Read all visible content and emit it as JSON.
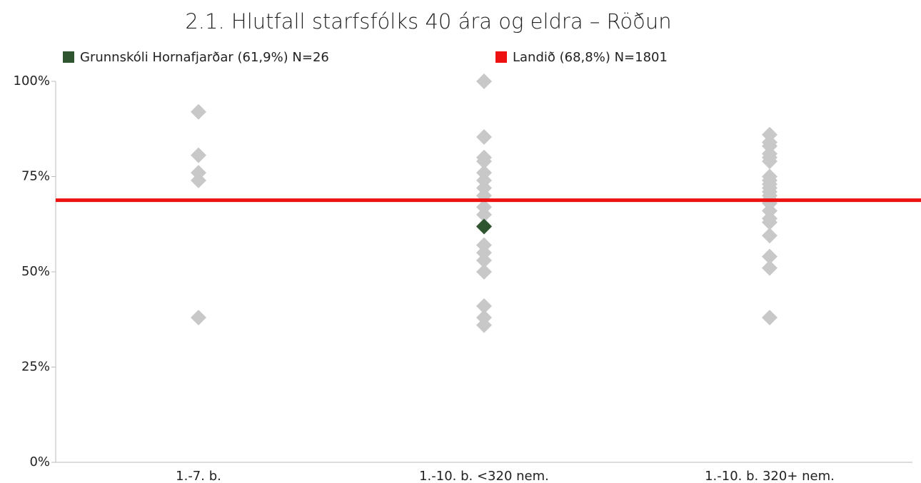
{
  "chart_data": {
    "type": "scatter",
    "title": "2.1. Hlutfall starfsfólks 40 ára og eldra – Röðun",
    "categories": [
      "1.-7. b.",
      "1.-10. b. <320 nem.",
      "1.-10. b. 320+ nem."
    ],
    "comparison": {
      "color": "#c8c8c8",
      "values": [
        [
          92,
          80.6,
          76,
          74,
          38
        ],
        [
          100,
          85.4,
          80,
          79,
          76,
          74,
          72,
          70,
          67,
          65,
          62,
          57,
          55,
          53,
          50,
          41,
          38,
          36
        ],
        [
          86,
          84,
          83,
          81,
          80,
          79,
          75,
          74,
          73,
          72,
          71,
          70,
          69,
          68,
          66,
          64,
          63,
          59.5,
          54,
          51,
          38
        ]
      ]
    },
    "series": [
      {
        "name": "Grunnskóli Hornafjarðar (61,9%) N=26",
        "color": "#2e5530",
        "values": [
          null,
          61.9,
          null
        ]
      }
    ],
    "reference": {
      "name": "Landið (68,8%) N=1801",
      "color": "#ee1111",
      "value": 68.8
    },
    "ylim": [
      0,
      100
    ],
    "yticks": [
      {
        "value": 0,
        "label": "0%"
      },
      {
        "value": 25,
        "label": "25%"
      },
      {
        "value": 50,
        "label": "50%"
      },
      {
        "value": 75,
        "label": "75%"
      },
      {
        "value": 100,
        "label": "100%"
      }
    ]
  }
}
